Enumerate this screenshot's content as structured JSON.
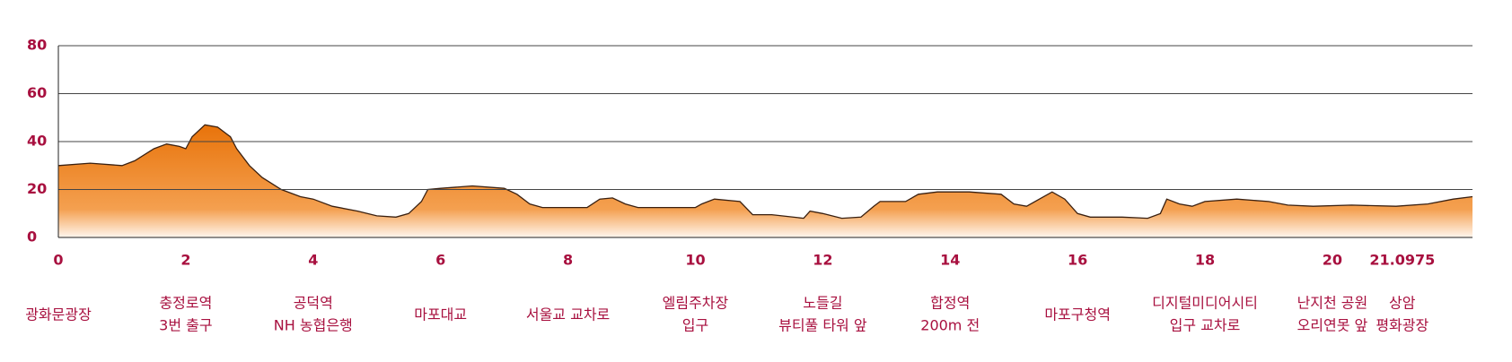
{
  "chart_data": {
    "type": "area",
    "x": [
      0,
      0.5,
      1,
      1.2,
      1.5,
      1.7,
      1.9,
      2.0,
      2.1,
      2.3,
      2.5,
      2.7,
      2.8,
      3,
      3.2,
      3.5,
      3.8,
      4,
      4.3,
      4.7,
      5,
      5.3,
      5.5,
      5.7,
      5.8,
      6,
      6.5,
      7,
      7.2,
      7.4,
      7.6,
      8,
      8.3,
      8.5,
      8.7,
      8.9,
      9.1,
      10,
      10.1,
      10.3,
      10.7,
      10.9,
      11.2,
      11.7,
      11.8,
      12,
      12.3,
      12.6,
      12.8,
      12.9,
      13.3,
      13.5,
      13.8,
      14.3,
      14.8,
      15,
      15.2,
      15.4,
      15.6,
      15.8,
      16,
      16.2,
      16.7,
      17.1,
      17.3,
      17.4,
      17.6,
      17.8,
      18,
      18.5,
      19,
      19.3,
      19.7,
      20.3,
      21,
      21.5,
      21.9,
      22.2
    ],
    "series": [
      {
        "color": "#e8730a",
        "values": [
          30,
          31,
          30,
          32,
          37,
          39,
          38,
          37,
          42,
          47,
          46,
          42,
          37,
          30,
          25,
          20,
          17,
          16,
          13,
          11,
          9,
          8.5,
          10,
          15,
          20,
          20.5,
          21.5,
          20.5,
          18,
          14,
          12.5,
          12.5,
          12.5,
          16,
          16.5,
          14,
          12.5,
          12.5,
          14,
          16,
          15,
          9.5,
          9.5,
          8,
          11,
          10,
          8,
          8.5,
          13,
          15,
          15,
          18,
          19,
          19,
          18,
          14,
          13,
          16,
          19,
          16,
          10,
          8.5,
          8.5,
          8,
          10,
          16,
          14,
          13,
          15,
          16,
          15,
          13.5,
          13,
          13.5,
          13,
          14,
          16,
          17
        ]
      }
    ],
    "xlim": [
      0,
      22.2
    ],
    "xticks": [
      0,
      2,
      4,
      6,
      8,
      10,
      12,
      14,
      16,
      18,
      20,
      21.0975
    ],
    "ylim": [
      0,
      80
    ],
    "yticks": [
      0,
      20,
      40,
      60,
      80
    ],
    "grid": true,
    "landmarks": [
      [
        "광화문광장"
      ],
      [
        "충정로역",
        "3번 출구"
      ],
      [
        "공덕역",
        "NH 농협은행"
      ],
      [
        "마포대교"
      ],
      [
        "서울교 교차로"
      ],
      [
        "엘림주차장",
        "입구"
      ],
      [
        "노들길",
        "뷰티풀 타워 앞"
      ],
      [
        "합정역",
        "200m 전"
      ],
      [
        "마포구청역"
      ],
      [
        "디지털미디어시티",
        "입구 교차로"
      ],
      [
        "난지천 공원",
        "오리연못 앞"
      ],
      [
        "상암",
        "평화광장"
      ]
    ]
  }
}
